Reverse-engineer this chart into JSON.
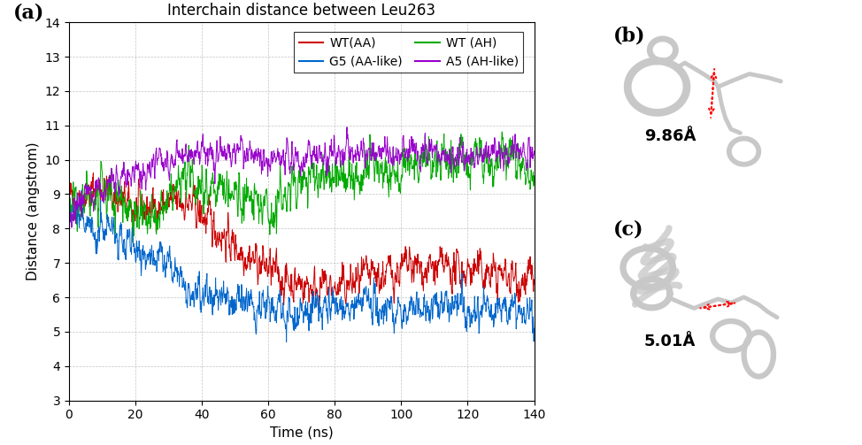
{
  "title": "Interchain distance between Leu263",
  "xlabel": "Time (ns)",
  "ylabel": "Distance (angstrom)",
  "ylim": [
    3,
    14
  ],
  "xlim": [
    0,
    140
  ],
  "yticks": [
    3,
    4,
    5,
    6,
    7,
    8,
    9,
    10,
    11,
    12,
    13,
    14
  ],
  "xticks": [
    0,
    20,
    40,
    60,
    80,
    100,
    120,
    140
  ],
  "legend_entries": [
    {
      "label": "WT(AA)",
      "color": "#cc0000"
    },
    {
      "label": "G5 (AA-like)",
      "color": "#0066cc"
    },
    {
      "label": "WT (AH)",
      "color": "#00aa00"
    },
    {
      "label": "A5 (AH-like)",
      "color": "#9900cc"
    }
  ],
  "label_a": "(a)",
  "label_b": "(b)",
  "label_c": "(c)",
  "dist_b": "9.86Å",
  "dist_c": "5.01Å",
  "seed": 42,
  "n_points": 1400,
  "wt_aa_mean_early": 8.5,
  "wt_aa_mean_late": 6.5,
  "wt_ah_mean_early": 8.5,
  "wt_ah_mean_late": 10.0,
  "g5_mean_early": 8.0,
  "g5_mean_late": 5.7,
  "a5_mean_early": 8.5,
  "a5_mean_late": 10.2,
  "grid_color": "#aaaaaa",
  "grid_linestyle": "--",
  "background_color": "#ffffff",
  "title_fontsize": 12,
  "axis_label_fontsize": 11,
  "tick_fontsize": 10,
  "legend_fontsize": 10
}
